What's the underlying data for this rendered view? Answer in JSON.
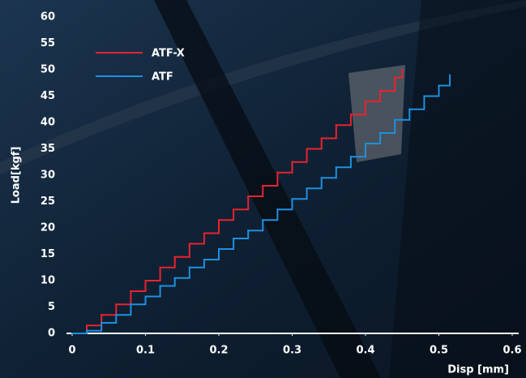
{
  "chart_data": {
    "type": "line",
    "step": true,
    "x_label": "Disp [mm]",
    "y_label": "Load[kgf]",
    "xlim": [
      0,
      0.6
    ],
    "xticks": [
      0,
      0.1,
      0.2,
      0.3,
      0.4,
      0.5,
      0.6
    ],
    "ylim": [
      0,
      60
    ],
    "yticks": [
      0,
      5,
      10,
      15,
      20,
      25,
      30,
      35,
      40,
      45,
      50,
      55,
      60
    ],
    "series": [
      {
        "name": "ATF-X",
        "color": "#e8232f",
        "x": [
          0,
          0.02,
          0.04,
          0.06,
          0.08,
          0.1,
          0.12,
          0.14,
          0.16,
          0.18,
          0.2,
          0.22,
          0.24,
          0.26,
          0.28,
          0.3,
          0.32,
          0.34,
          0.36,
          0.38,
          0.4,
          0.42,
          0.44,
          0.45
        ],
        "values": [
          0,
          1.5,
          3.5,
          5.5,
          8,
          10,
          12.5,
          14.5,
          17,
          19,
          21.5,
          23.5,
          26,
          28,
          30.5,
          32.5,
          35,
          37,
          39.5,
          41.5,
          44,
          46,
          48.5,
          50
        ]
      },
      {
        "name": "ATF",
        "color": "#1f8fe0",
        "x": [
          0,
          0.02,
          0.04,
          0.06,
          0.08,
          0.1,
          0.12,
          0.14,
          0.16,
          0.18,
          0.2,
          0.22,
          0.24,
          0.26,
          0.28,
          0.3,
          0.32,
          0.34,
          0.36,
          0.38,
          0.4,
          0.42,
          0.44,
          0.46,
          0.48,
          0.5,
          0.515
        ],
        "values": [
          0,
          0.5,
          2,
          3.5,
          5.5,
          7,
          9,
          10.5,
          12.5,
          14,
          16,
          18,
          19.5,
          21.5,
          23.5,
          25.5,
          27.5,
          29.5,
          31.5,
          33.5,
          36,
          38,
          40.5,
          42.5,
          45,
          47,
          49
        ]
      }
    ]
  }
}
